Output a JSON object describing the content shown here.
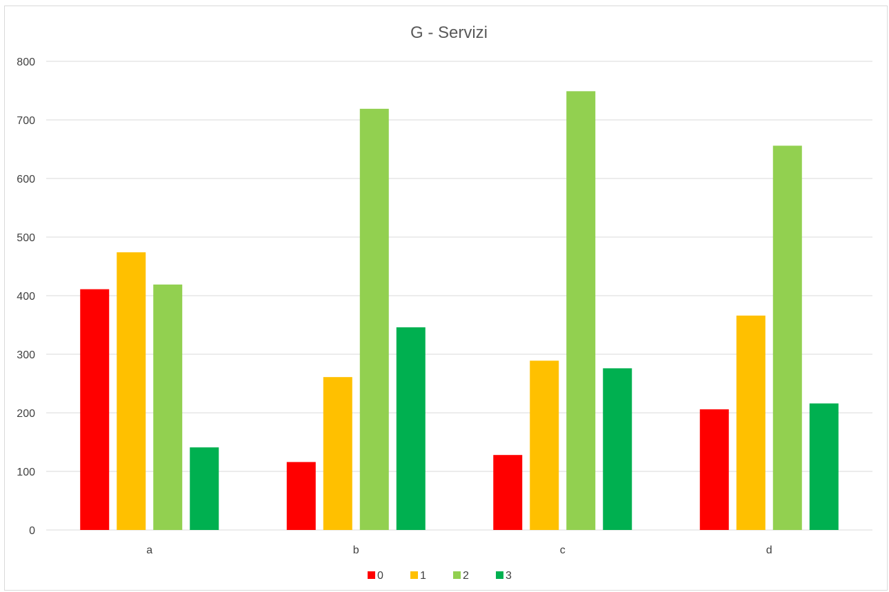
{
  "chart_data": {
    "type": "bar",
    "title": "G - Servizi",
    "xlabel": "",
    "ylabel": "",
    "categories": [
      "a",
      "b",
      "c",
      "d"
    ],
    "ylim": [
      0,
      800
    ],
    "yticks": [
      0,
      100,
      200,
      300,
      400,
      500,
      600,
      700,
      800
    ],
    "grid": true,
    "legend_position": "bottom",
    "series": [
      {
        "name": "0",
        "color": "#ff0000",
        "values": [
          411,
          116,
          128,
          206
        ]
      },
      {
        "name": "1",
        "color": "#ffc000",
        "values": [
          474,
          261,
          289,
          366
        ]
      },
      {
        "name": "2",
        "color": "#92d050",
        "values": [
          419,
          719,
          749,
          656
        ]
      },
      {
        "name": "3",
        "color": "#00b050",
        "values": [
          141,
          346,
          276,
          216
        ]
      }
    ]
  }
}
